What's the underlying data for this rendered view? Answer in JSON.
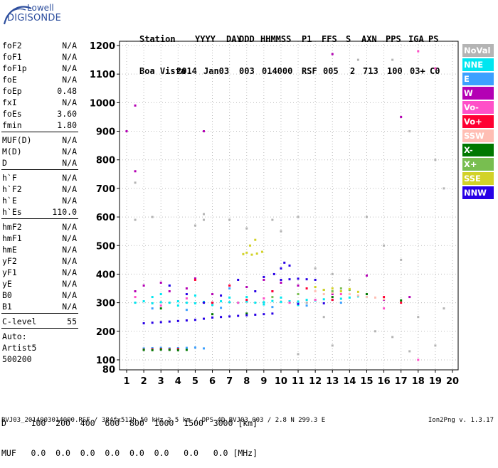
{
  "logo": {
    "line1": "Lowell",
    "line2": "DIGISONDE"
  },
  "header": {
    "labels": [
      "Station",
      "YYYY",
      "DAY",
      "DDD",
      "HHMMSS",
      "P1",
      "FFS",
      "S",
      "AXN",
      "PPS",
      "IGA",
      "PS"
    ],
    "values": [
      "Boa Vista",
      "2014",
      "Jan03",
      "003",
      "014000",
      "RSF",
      "005",
      "2",
      "713",
      "100",
      "03+",
      "C0"
    ]
  },
  "params": {
    "group1": [
      {
        "name": "foF2",
        "value": "N/A"
      },
      {
        "name": "foF1",
        "value": "N/A"
      },
      {
        "name": "foF1p",
        "value": "N/A"
      },
      {
        "name": "foE",
        "value": "N/A"
      },
      {
        "name": "foEp",
        "value": "0.48"
      },
      {
        "name": "fxI",
        "value": "N/A"
      },
      {
        "name": "foEs",
        "value": "3.60"
      },
      {
        "name": "fmin",
        "value": "1.80"
      }
    ],
    "group2": [
      {
        "name": "MUF(D)",
        "value": "N/A"
      },
      {
        "name": "M(D)",
        "value": "N/A"
      },
      {
        "name": "D",
        "value": "N/A"
      }
    ],
    "group3": [
      {
        "name": "h`F",
        "value": "N/A"
      },
      {
        "name": "h`F2",
        "value": "N/A"
      },
      {
        "name": "h`E",
        "value": "N/A"
      },
      {
        "name": "h`Es",
        "value": "110.0"
      }
    ],
    "group4": [
      {
        "name": "hmF2",
        "value": "N/A"
      },
      {
        "name": "hmF1",
        "value": "N/A"
      },
      {
        "name": "hmE",
        "value": "N/A"
      },
      {
        "name": "yF2",
        "value": "N/A"
      },
      {
        "name": "yF1",
        "value": "N/A"
      },
      {
        "name": "yE",
        "value": "N/A"
      },
      {
        "name": "B0",
        "value": "N/A"
      },
      {
        "name": "B1",
        "value": "N/A"
      }
    ],
    "clevel": {
      "name": "C-level",
      "value": "55"
    },
    "auto": [
      "Auto:",
      "Artist5",
      "500200"
    ]
  },
  "legend": [
    {
      "label": "NoVal",
      "color": "#b4b4b4"
    },
    {
      "label": "NNE",
      "color": "#00e6f0"
    },
    {
      "label": "E",
      "color": "#3ca0ff"
    },
    {
      "label": "W",
      "color": "#b400b4"
    },
    {
      "label": "Vo-",
      "color": "#ff50c8"
    },
    {
      "label": "Vo+",
      "color": "#ff0032"
    },
    {
      "label": "SSW",
      "color": "#ffbeb4"
    },
    {
      "label": "X-",
      "color": "#007800"
    },
    {
      "label": "X+",
      "color": "#78be50"
    },
    {
      "label": "SSE",
      "color": "#d2d228"
    },
    {
      "label": "NNW",
      "color": "#2800e6"
    }
  ],
  "bottom": {
    "d_row": "D     100  200  400  600  800  1000  1500  3000 [km]",
    "muf_row": "MUF   0.0  0.0  0.0  0.0  0.0  0.0   0.0   0.0 [MHz]",
    "footer": "BVJ03_2014003014000.RSF / 384fx512h 50 kHz 2.5 km / DPS-4D BVJ03 003 / 2.8 N 299.3 E",
    "version": "Ion2Png v. 1.3.17"
  },
  "chart_data": {
    "type": "scatter",
    "xlim": [
      1,
      20
    ],
    "ylim": [
      80,
      1200
    ],
    "x_ticks": [
      1,
      2,
      3,
      4,
      5,
      6,
      7,
      8,
      9,
      10,
      11,
      12,
      13,
      14,
      15,
      16,
      17,
      18,
      19,
      20
    ],
    "y_ticks": [
      100,
      200,
      300,
      400,
      500,
      600,
      700,
      800,
      900,
      1000,
      1100,
      1200
    ],
    "y_tick_labels": [
      "100",
      "200",
      "300",
      "400",
      "500",
      "600",
      "700",
      "800",
      "900",
      "1000",
      "1100",
      "1200"
    ],
    "bottom_y_label": "80",
    "grid": true,
    "series": [
      {
        "name": "NNE",
        "color": "#00e6f0",
        "points": [
          [
            1.5,
            300
          ],
          [
            2.0,
            305
          ],
          [
            2.5,
            298
          ],
          [
            3.0,
            302
          ],
          [
            3.5,
            300
          ],
          [
            4.0,
            305
          ],
          [
            4.5,
            300
          ],
          [
            5.0,
            298
          ],
          [
            5.5,
            303
          ],
          [
            6.0,
            300
          ],
          [
            6.5,
            305
          ],
          [
            7.0,
            302
          ],
          [
            7.5,
            300
          ],
          [
            8.0,
            304
          ],
          [
            8.5,
            300
          ],
          [
            9.0,
            302
          ],
          [
            9.5,
            306
          ],
          [
            10.0,
            303
          ],
          [
            10.5,
            305
          ],
          [
            11.0,
            304
          ],
          [
            11.5,
            310
          ],
          [
            12.0,
            308
          ],
          [
            12.5,
            312
          ],
          [
            13.0,
            310
          ],
          [
            13.5,
            314
          ],
          [
            14.0,
            318
          ],
          [
            14.5,
            322
          ],
          [
            15.0,
            320
          ],
          [
            2.5,
            320
          ],
          [
            4.0,
            290
          ],
          [
            6.0,
            292
          ],
          [
            8.0,
            320
          ],
          [
            10.0,
            318
          ],
          [
            3.0,
            330
          ],
          [
            5.0,
            325
          ],
          [
            7.0,
            318
          ],
          [
            9.0,
            294
          ],
          [
            11.0,
            292
          ]
        ]
      },
      {
        "name": "E",
        "color": "#3ca0ff",
        "points": [
          [
            2.0,
            140
          ],
          [
            2.5,
            141
          ],
          [
            3.0,
            142
          ],
          [
            3.5,
            140
          ],
          [
            4.0,
            141
          ],
          [
            4.5,
            142
          ],
          [
            5.0,
            143
          ],
          [
            5.5,
            140
          ],
          [
            2.5,
            280
          ],
          [
            4.5,
            275
          ],
          [
            6.5,
            282
          ],
          [
            9.5,
            285
          ],
          [
            11.5,
            290
          ],
          [
            13.5,
            300
          ],
          [
            7.0,
            350
          ],
          [
            3.5,
            360
          ]
        ]
      },
      {
        "name": "W",
        "color": "#b400b4",
        "points": [
          [
            1.5,
            340
          ],
          [
            2.0,
            360
          ],
          [
            3.0,
            370
          ],
          [
            3.5,
            340
          ],
          [
            4.5,
            350
          ],
          [
            5.0,
            385
          ],
          [
            6.0,
            330
          ],
          [
            7.0,
            360
          ],
          [
            8.0,
            355
          ],
          [
            9.0,
            380
          ],
          [
            9.5,
            340
          ],
          [
            10.0,
            370
          ],
          [
            11.0,
            360
          ],
          [
            13.0,
            330
          ],
          [
            15.0,
            395
          ],
          [
            16.0,
            310
          ],
          [
            17.5,
            320
          ],
          [
            1.0,
            900
          ],
          [
            1.5,
            990
          ],
          [
            1.5,
            760
          ],
          [
            5.5,
            900
          ],
          [
            13.0,
            1170
          ],
          [
            17.0,
            950
          ]
        ]
      },
      {
        "name": "Vo-",
        "color": "#ff50c8",
        "points": [
          [
            1.5,
            320
          ],
          [
            3.0,
            290
          ],
          [
            4.5,
            315
          ],
          [
            6.0,
            300
          ],
          [
            7.5,
            300
          ],
          [
            9.0,
            315
          ],
          [
            10.5,
            300
          ],
          [
            12.0,
            310
          ],
          [
            13.5,
            330
          ],
          [
            16.0,
            280
          ],
          [
            18.0,
            1180
          ],
          [
            18.0,
            100
          ],
          [
            19.0,
            1120
          ]
        ]
      },
      {
        "name": "Vo+",
        "color": "#ff0032",
        "points": [
          [
            2.0,
            136
          ],
          [
            2.5,
            137
          ],
          [
            3.0,
            138
          ],
          [
            3.5,
            137
          ],
          [
            4.0,
            138
          ],
          [
            5.0,
            380
          ],
          [
            6.0,
            300
          ],
          [
            7.0,
            360
          ],
          [
            8.0,
            310
          ],
          [
            9.5,
            340
          ],
          [
            11.5,
            350
          ],
          [
            13.0,
            310
          ],
          [
            16.0,
            320
          ],
          [
            17.0,
            300
          ]
        ]
      },
      {
        "name": "SSW",
        "color": "#ffbeb4",
        "points": [
          [
            12.0,
            340
          ],
          [
            12.5,
            330
          ],
          [
            13.0,
            335
          ],
          [
            13.5,
            340
          ],
          [
            14.0,
            330
          ],
          [
            14.5,
            325
          ],
          [
            15.0,
            320
          ],
          [
            15.5,
            318
          ],
          [
            16.0,
            312
          ]
        ]
      },
      {
        "name": "X-",
        "color": "#007800",
        "points": [
          [
            2.0,
            135
          ],
          [
            2.5,
            134
          ],
          [
            3.0,
            136
          ],
          [
            3.5,
            135
          ],
          [
            4.0,
            134
          ],
          [
            4.5,
            135
          ],
          [
            3.0,
            280
          ],
          [
            6.0,
            260
          ],
          [
            8.0,
            262
          ],
          [
            13.0,
            320
          ],
          [
            15.0,
            330
          ],
          [
            17.0,
            308
          ]
        ]
      },
      {
        "name": "X+",
        "color": "#78be50",
        "points": [
          [
            12.5,
            345
          ],
          [
            13.0,
            340
          ],
          [
            13.5,
            350
          ],
          [
            14.0,
            345
          ],
          [
            11.0,
            330
          ],
          [
            9.5,
            320
          ]
        ]
      },
      {
        "name": "SSE",
        "color": "#d2d228",
        "points": [
          [
            7.8,
            470
          ],
          [
            8.0,
            475
          ],
          [
            8.3,
            468
          ],
          [
            8.6,
            472
          ],
          [
            8.9,
            478
          ],
          [
            8.2,
            500
          ],
          [
            8.5,
            520
          ],
          [
            12.5,
            345
          ],
          [
            13.0,
            350
          ],
          [
            13.5,
            340
          ],
          [
            14.0,
            348
          ],
          [
            14.5,
            338
          ],
          [
            12.0,
            355
          ]
        ]
      },
      {
        "name": "NNW",
        "color": "#2800e6",
        "points": [
          [
            2.0,
            228
          ],
          [
            2.5,
            230
          ],
          [
            3.0,
            232
          ],
          [
            3.5,
            234
          ],
          [
            4.0,
            236
          ],
          [
            4.5,
            238
          ],
          [
            5.0,
            240
          ],
          [
            5.5,
            244
          ],
          [
            6.0,
            248
          ],
          [
            6.5,
            250
          ],
          [
            7.0,
            252
          ],
          [
            7.5,
            254
          ],
          [
            8.0,
            256
          ],
          [
            8.5,
            258
          ],
          [
            9.0,
            260
          ],
          [
            9.5,
            262
          ],
          [
            10.0,
            380
          ],
          [
            10.5,
            382
          ],
          [
            11.0,
            384
          ],
          [
            11.5,
            382
          ],
          [
            12.0,
            380
          ],
          [
            10.0,
            420
          ],
          [
            10.5,
            430
          ],
          [
            10.2,
            440
          ],
          [
            9.6,
            400
          ],
          [
            9.0,
            390
          ],
          [
            8.5,
            340
          ],
          [
            6.5,
            325
          ],
          [
            4.5,
            330
          ],
          [
            3.5,
            360
          ],
          [
            7.5,
            380
          ],
          [
            5.5,
            300
          ],
          [
            11.0,
            296
          ],
          [
            12.5,
            298
          ]
        ]
      },
      {
        "name": "NoVal",
        "color": "#b4b4b4",
        "points": [
          [
            12.0,
            420
          ],
          [
            13.0,
            400
          ],
          [
            14.0,
            380
          ],
          [
            16.5,
            1150
          ],
          [
            14.5,
            1150
          ],
          [
            17.5,
            900
          ],
          [
            19.0,
            800
          ],
          [
            19.5,
            700
          ],
          [
            15.0,
            600
          ],
          [
            16.0,
            500
          ],
          [
            17.0,
            450
          ],
          [
            11.5,
            300
          ],
          [
            18.0,
            250
          ],
          [
            19.5,
            280
          ],
          [
            12.5,
            250
          ],
          [
            15.5,
            200
          ],
          [
            16.5,
            180
          ],
          [
            13.0,
            150
          ],
          [
            11.0,
            120
          ],
          [
            17.5,
            130
          ],
          [
            19.0,
            150
          ],
          [
            1.5,
            720
          ],
          [
            1.5,
            590
          ],
          [
            2.5,
            600
          ],
          [
            5.0,
            570
          ],
          [
            5.5,
            590
          ],
          [
            5.5,
            610
          ],
          [
            7.0,
            590
          ],
          [
            8.0,
            560
          ],
          [
            9.5,
            590
          ],
          [
            11.0,
            600
          ],
          [
            10.0,
            550
          ]
        ]
      }
    ]
  }
}
